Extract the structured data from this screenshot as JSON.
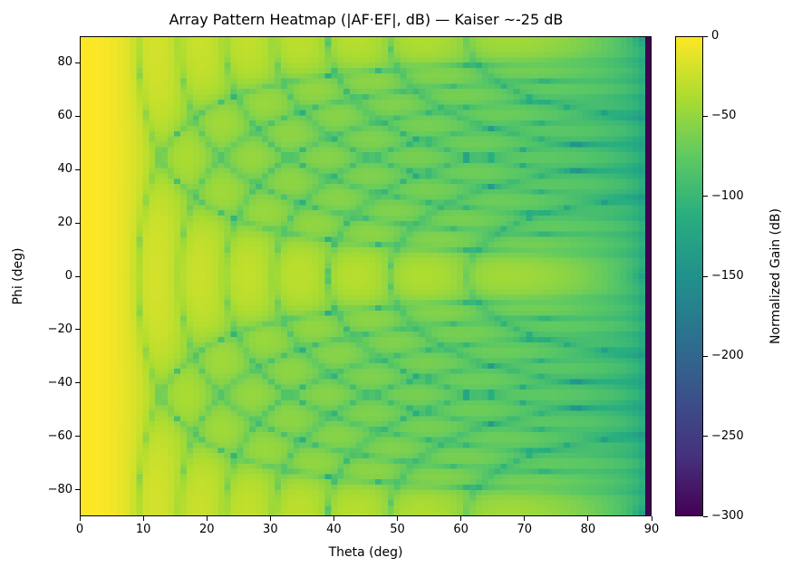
{
  "chart_data": {
    "type": "heatmap",
    "title": "Array Pattern Heatmap (|AF·EF|, dB) — Kaiser ~-25 dB",
    "xlabel": "Theta (deg)",
    "ylabel": "Phi (deg)",
    "x_range": [
      0,
      90
    ],
    "y_range": [
      -90,
      90
    ],
    "x_ticks": [
      0,
      10,
      20,
      30,
      40,
      50,
      60,
      70,
      80,
      90
    ],
    "y_ticks": [
      80,
      60,
      40,
      20,
      0,
      -20,
      -40,
      -60,
      -80
    ],
    "grid": false,
    "colorbar": {
      "label": "Normalized Gain (dB)",
      "ticks": [
        0,
        -50,
        -100,
        -150,
        -200,
        -250,
        -300
      ],
      "vmin": -300,
      "vmax": 0,
      "colormap": "viridis"
    },
    "model": {
      "description": "Normalized planar-array pattern in dB: |AF(u)·AF(v)·EF(theta)| with u=sin(theta)cos(phi), v=sin(theta)sin(phi); Kaiser taper giving ~-25 dB sidelobes; element factor cos(theta)^p; values clipped to [-300, 0] dB",
      "elements_x": 16,
      "elements_y": 16,
      "spacing_wavelengths": 0.5,
      "taper": "Kaiser",
      "sidelobe_db": -25,
      "kaiser_beta": 2.0,
      "element_factor_exponent": 1.5,
      "theta_step_deg": 1,
      "phi_step_deg": 2,
      "clip_db": -300
    },
    "colormap_stops": [
      [
        0.0,
        "#440154"
      ],
      [
        0.125,
        "#46327e"
      ],
      [
        0.25,
        "#3b528b"
      ],
      [
        0.375,
        "#2c728e"
      ],
      [
        0.5,
        "#21918c"
      ],
      [
        0.625,
        "#28ae80"
      ],
      [
        0.75,
        "#5ec962"
      ],
      [
        0.875,
        "#addc30"
      ],
      [
        1.0,
        "#fde725"
      ]
    ]
  }
}
